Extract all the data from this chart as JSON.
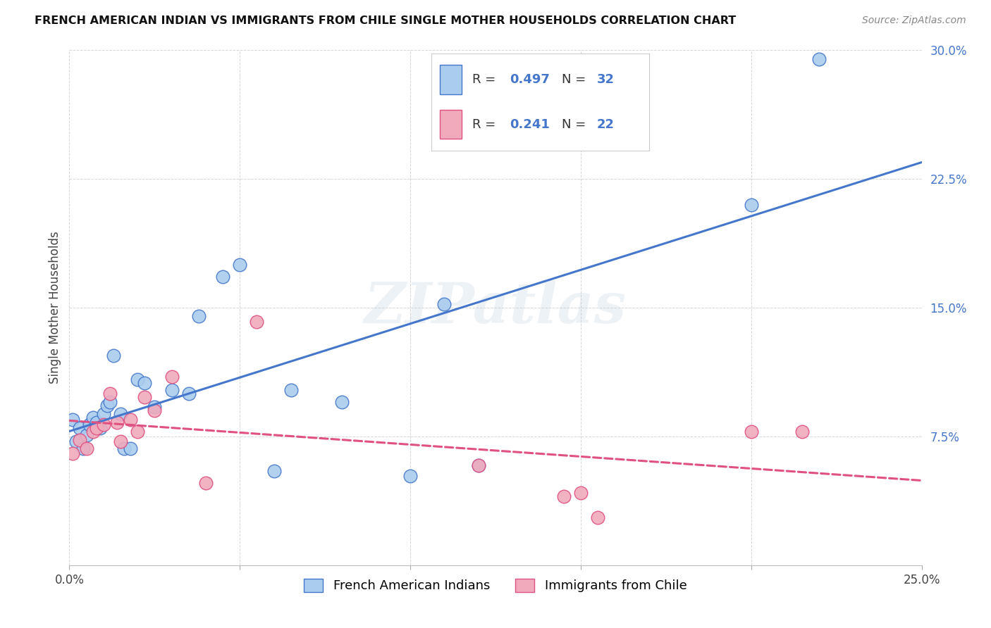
{
  "title": "FRENCH AMERICAN INDIAN VS IMMIGRANTS FROM CHILE SINGLE MOTHER HOUSEHOLDS CORRELATION CHART",
  "source": "Source: ZipAtlas.com",
  "ylabel": "Single Mother Households",
  "xlim": [
    0.0,
    0.25
  ],
  "ylim": [
    0.0,
    0.3
  ],
  "xticks": [
    0.0,
    0.05,
    0.1,
    0.15,
    0.2,
    0.25
  ],
  "yticks": [
    0.0,
    0.075,
    0.15,
    0.225,
    0.3
  ],
  "blue_R": "0.497",
  "blue_N": "32",
  "pink_R": "0.241",
  "pink_N": "22",
  "legend_label1": "French American Indians",
  "legend_label2": "Immigrants from Chile",
  "blue_scatter_x": [
    0.001,
    0.002,
    0.003,
    0.004,
    0.005,
    0.006,
    0.007,
    0.008,
    0.009,
    0.01,
    0.011,
    0.012,
    0.013,
    0.015,
    0.016,
    0.018,
    0.02,
    0.022,
    0.025,
    0.03,
    0.035,
    0.038,
    0.045,
    0.05,
    0.06,
    0.065,
    0.08,
    0.1,
    0.11,
    0.12,
    0.2,
    0.22
  ],
  "blue_scatter_y": [
    0.085,
    0.072,
    0.08,
    0.068,
    0.076,
    0.082,
    0.086,
    0.083,
    0.08,
    0.088,
    0.093,
    0.095,
    0.122,
    0.088,
    0.068,
    0.068,
    0.108,
    0.106,
    0.092,
    0.102,
    0.1,
    0.145,
    0.168,
    0.175,
    0.055,
    0.102,
    0.095,
    0.052,
    0.152,
    0.058,
    0.21,
    0.295
  ],
  "pink_scatter_x": [
    0.001,
    0.003,
    0.005,
    0.007,
    0.008,
    0.01,
    0.012,
    0.014,
    0.015,
    0.018,
    0.02,
    0.022,
    0.025,
    0.03,
    0.04,
    0.055,
    0.12,
    0.145,
    0.15,
    0.155,
    0.2,
    0.215
  ],
  "pink_scatter_y": [
    0.065,
    0.073,
    0.068,
    0.078,
    0.08,
    0.082,
    0.1,
    0.083,
    0.072,
    0.085,
    0.078,
    0.098,
    0.09,
    0.11,
    0.048,
    0.142,
    0.058,
    0.04,
    0.042,
    0.028,
    0.078,
    0.078
  ],
  "blue_line_color": "#4477CC",
  "pink_line_color": "#E05080",
  "blue_scatter_color": "#AACCEE",
  "pink_scatter_color": "#F0AABC",
  "watermark": "ZIPatlas",
  "bg_color": "#ffffff",
  "grid_color": "#cccccc",
  "title_fontsize": 11.5,
  "source_fontsize": 10,
  "tick_fontsize": 12,
  "ylabel_fontsize": 12
}
